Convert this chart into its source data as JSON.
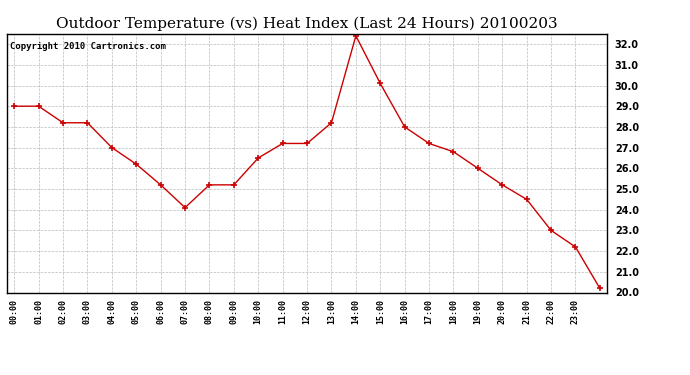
{
  "title": "Outdoor Temperature (vs) Heat Index (Last 24 Hours) 20100203",
  "copyright_text": "Copyright 2010 Cartronics.com",
  "x_labels": [
    "00:00",
    "01:00",
    "02:00",
    "03:00",
    "04:00",
    "05:00",
    "06:00",
    "07:00",
    "08:00",
    "09:00",
    "10:00",
    "11:00",
    "12:00",
    "13:00",
    "14:00",
    "15:00",
    "16:00",
    "17:00",
    "18:00",
    "19:00",
    "20:00",
    "21:00",
    "22:00",
    "23:00"
  ],
  "y_values": [
    29.0,
    29.0,
    28.2,
    28.2,
    27.0,
    26.2,
    25.2,
    24.1,
    25.2,
    25.2,
    26.5,
    27.2,
    27.2,
    28.2,
    32.4,
    30.1,
    28.0,
    27.2,
    26.8,
    26.0,
    25.2,
    24.5,
    23.0,
    22.2,
    20.2
  ],
  "line_color": "#cc0000",
  "marker": "+",
  "marker_color": "#cc0000",
  "background_color": "#ffffff",
  "plot_bg_color": "#ffffff",
  "grid_color": "#bbbbbb",
  "title_fontsize": 11,
  "ylim_min": 20.0,
  "ylim_max": 32.5,
  "border_color": "#000000",
  "copyright_fontsize": 6.5
}
